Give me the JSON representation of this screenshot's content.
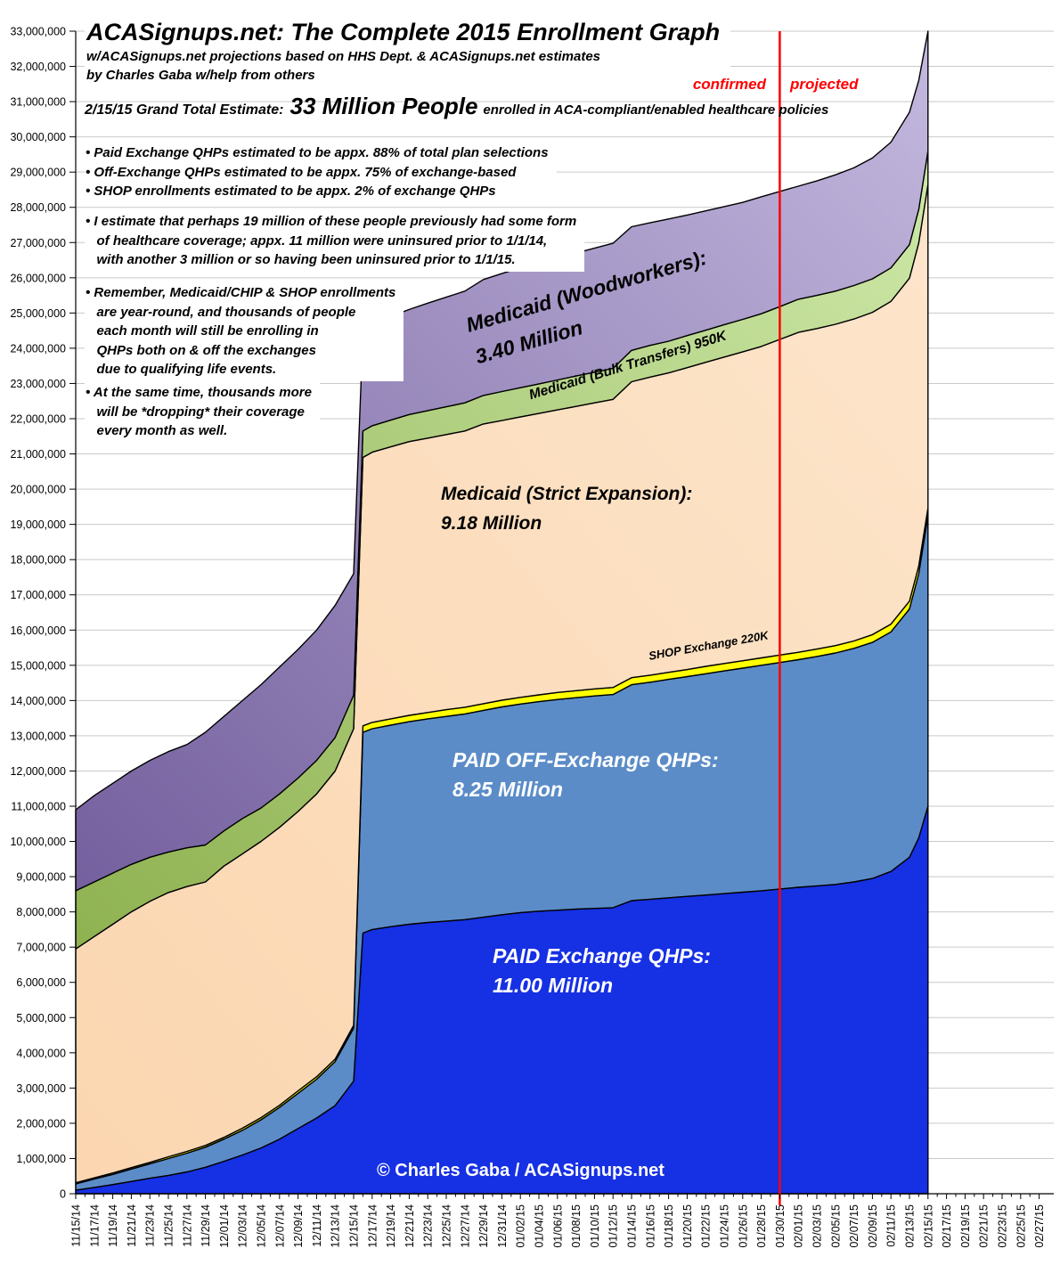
{
  "header": {
    "title": "ACASignups.net: The Complete 2015 Enrollment Graph",
    "subtitle1": "w/ACASignups.net projections based on HHS Dept. & ACASignups.net estimates",
    "subtitle2": "by Charles Gaba w/help from others",
    "confirmed_label": "confirmed",
    "projected_label": "projected",
    "grand_total_prefix": "2/15/15 Grand Total Estimate:",
    "grand_total_big": "33 Million People",
    "grand_total_suffix": "enrolled in ACA-compliant/enabled healthcare policies"
  },
  "notes": {
    "assumptions": "• Paid Exchange QHPs estimated to be appx. 88% of total plan selections\n• Off-Exchange QHPs estimated to be appx. 75% of exchange-based\n• SHOP enrollments estimated to be appx. 2% of exchange QHPs",
    "prior_coverage": "• I estimate that perhaps 19 million of these people previously had some form\n   of healthcare coverage; appx. 11 million were uninsured prior to 1/1/14,\n   with another 3 million or so having been uninsured prior to 1/1/15.",
    "remember": "• Remember, Medicaid/CHIP & SHOP enrollments\n   are year-round, and thousands of people\n   each month will still be enrolling in\n   QHPs both on & off the exchanges\n   due to qualifying life events.",
    "attrition": "• At the same time, thousands more\n   will be *dropping* their coverage\n   every month as well."
  },
  "watermark": "© Charles Gaba / ACASignups.net",
  "chart_data": {
    "type": "area",
    "stacked": true,
    "units": "millions of people",
    "grid": "horizontal-only",
    "y_axis": {
      "min": 0,
      "max": 33000000,
      "tick_step": 1000000,
      "format": "comma"
    },
    "x_tick_labels": [
      "11/15/14",
      "11/17/14",
      "11/19/14",
      "11/21/14",
      "11/23/14",
      "11/25/14",
      "11/27/14",
      "11/29/14",
      "12/01/14",
      "12/03/14",
      "12/05/14",
      "12/07/14",
      "12/09/14",
      "12/11/14",
      "12/13/14",
      "12/15/14",
      "12/17/14",
      "12/19/14",
      "12/21/14",
      "12/23/14",
      "12/25/14",
      "12/27/14",
      "12/29/14",
      "12/31/14",
      "01/02/15",
      "01/04/15",
      "01/06/15",
      "01/08/15",
      "01/10/15",
      "01/12/15",
      "01/14/15",
      "01/16/15",
      "01/18/15",
      "01/20/15",
      "01/22/15",
      "01/24/15",
      "01/26/15",
      "01/28/15",
      "01/30/15",
      "02/01/15",
      "02/03/15",
      "02/05/15",
      "02/07/15",
      "02/09/15",
      "02/11/15",
      "02/13/15",
      "02/15/15",
      "02/17/15",
      "02/19/15",
      "02/21/15",
      "02/23/15",
      "02/25/15",
      "02/27/15"
    ],
    "divider": {
      "label_left": "confirmed",
      "label_right": "projected",
      "date": "01/30/15",
      "tick_index": 38,
      "color": "#ff0000"
    },
    "x_data_dates": [
      "11/15/14",
      "11/17/14",
      "11/19/14",
      "11/21/14",
      "11/23/14",
      "11/25/14",
      "11/27/14",
      "11/29/14",
      "12/01/14",
      "12/03/14",
      "12/05/14",
      "12/07/14",
      "12/09/14",
      "12/11/14",
      "12/13/14",
      "12/15/14",
      "12/16/14",
      "12/17/14",
      "12/19/14",
      "12/21/14",
      "12/23/14",
      "12/25/14",
      "12/27/14",
      "12/29/14",
      "12/31/14",
      "01/02/15",
      "01/04/15",
      "01/06/15",
      "01/08/15",
      "01/10/15",
      "01/12/15",
      "01/14/15",
      "01/16/15",
      "01/18/15",
      "01/20/15",
      "01/22/15",
      "01/24/15",
      "01/26/15",
      "01/28/15",
      "01/30/15",
      "02/01/15",
      "02/03/15",
      "02/05/15",
      "02/07/15",
      "02/09/15",
      "02/11/15",
      "02/13/15",
      "02/14/15",
      "02/15/15"
    ],
    "x_data_tick_index": [
      0,
      1,
      2,
      3,
      4,
      5,
      6,
      7,
      8,
      9,
      10,
      11,
      12,
      13,
      14,
      15,
      15.5,
      16,
      17,
      18,
      19,
      20,
      21,
      22,
      23,
      24,
      25,
      26,
      27,
      28,
      29,
      30,
      31,
      32,
      33,
      34,
      35,
      36,
      37,
      38,
      39,
      40,
      41,
      42,
      43,
      44,
      45,
      45.5,
      46
    ],
    "series": [
      {
        "id": "paid_exchange_qhps",
        "name": "PAID Exchange QHPs",
        "label": "PAID Exchange QHPs:\n11.00 Million",
        "final_value": "11.00 Million",
        "color": "#1630e4",
        "values": [
          0.1,
          0.18,
          0.26,
          0.35,
          0.44,
          0.52,
          0.62,
          0.75,
          0.92,
          1.1,
          1.3,
          1.55,
          1.85,
          2.15,
          2.5,
          3.2,
          7.4,
          7.5,
          7.58,
          7.65,
          7.7,
          7.74,
          7.78,
          7.85,
          7.92,
          7.98,
          8.02,
          8.05,
          8.08,
          8.1,
          8.12,
          8.32,
          8.36,
          8.4,
          8.44,
          8.48,
          8.52,
          8.56,
          8.6,
          8.65,
          8.7,
          8.74,
          8.78,
          8.85,
          8.95,
          9.15,
          9.55,
          10.1,
          11.0
        ]
      },
      {
        "id": "paid_off_exchange_qhps",
        "name": "PAID OFF-Exchange QHPs",
        "label": "PAID OFF-Exchange QHPs:\n8.25 Million",
        "final_value": "8.25 Million",
        "color": "#5b8cc8",
        "values": [
          0.18,
          0.24,
          0.29,
          0.35,
          0.41,
          0.48,
          0.53,
          0.57,
          0.63,
          0.7,
          0.8,
          0.9,
          1.0,
          1.1,
          1.25,
          1.5,
          5.7,
          5.7,
          5.72,
          5.75,
          5.78,
          5.81,
          5.84,
          5.87,
          5.9,
          5.92,
          5.95,
          5.98,
          6.0,
          6.03,
          6.05,
          6.13,
          6.16,
          6.2,
          6.24,
          6.28,
          6.32,
          6.36,
          6.4,
          6.43,
          6.46,
          6.51,
          6.57,
          6.63,
          6.7,
          6.8,
          7.05,
          7.5,
          8.25
        ]
      },
      {
        "id": "shop_exchange",
        "name": "SHOP Exchange",
        "label": "SHOP Exchange 220K",
        "final_value": "220K",
        "color": "#ffff00",
        "values": [
          0.03,
          0.03,
          0.04,
          0.04,
          0.04,
          0.05,
          0.05,
          0.05,
          0.05,
          0.06,
          0.06,
          0.06,
          0.07,
          0.07,
          0.07,
          0.08,
          0.18,
          0.18,
          0.18,
          0.18,
          0.18,
          0.19,
          0.19,
          0.19,
          0.19,
          0.19,
          0.19,
          0.2,
          0.2,
          0.2,
          0.2,
          0.2,
          0.2,
          0.2,
          0.2,
          0.21,
          0.21,
          0.21,
          0.21,
          0.21,
          0.21,
          0.21,
          0.21,
          0.21,
          0.22,
          0.22,
          0.22,
          0.22,
          0.22
        ]
      },
      {
        "id": "medicaid_strict_expansion",
        "name": "Medicaid (Strict Expansion)",
        "label": "Medicaid (Strict Expansion):\n9.18 Million",
        "final_value": "9.18 Million",
        "color": "#fbd6b0",
        "color2": "#fde5cb",
        "values": [
          6.64,
          6.85,
          7.06,
          7.26,
          7.41,
          7.5,
          7.52,
          7.48,
          7.7,
          7.79,
          7.84,
          7.89,
          7.93,
          8.03,
          8.18,
          8.42,
          7.62,
          7.67,
          7.72,
          7.77,
          7.79,
          7.81,
          7.84,
          7.94,
          7.94,
          7.96,
          7.99,
          8.02,
          8.07,
          8.12,
          8.18,
          8.4,
          8.46,
          8.5,
          8.57,
          8.63,
          8.7,
          8.77,
          8.84,
          8.96,
          9.08,
          9.1,
          9.12,
          9.14,
          9.15,
          9.16,
          9.17,
          9.17,
          9.18
        ]
      },
      {
        "id": "medicaid_bulk_transfers",
        "name": "Medicaid (Bulk Transfers)",
        "label": "Medicaid (Bulk Transfers) 950K",
        "final_value": "950K",
        "color": "#8fb251",
        "color2": "#cde8a8",
        "values": [
          1.65,
          1.55,
          1.45,
          1.35,
          1.25,
          1.15,
          1.1,
          1.05,
          1.0,
          1.0,
          0.95,
          0.95,
          0.95,
          0.95,
          0.95,
          0.95,
          0.75,
          0.75,
          0.76,
          0.77,
          0.78,
          0.79,
          0.8,
          0.81,
          0.82,
          0.83,
          0.84,
          0.85,
          0.86,
          0.87,
          0.88,
          0.89,
          0.9,
          0.9,
          0.91,
          0.91,
          0.92,
          0.92,
          0.93,
          0.93,
          0.94,
          0.94,
          0.94,
          0.95,
          0.95,
          0.95,
          0.95,
          0.95,
          0.95
        ]
      },
      {
        "id": "medicaid_woodworkers",
        "name": "Medicaid (Woodworkers)",
        "label": "Medicaid (Woodworkers):\n3.40 Million",
        "final_value": "3.40 Million",
        "color": "#74609e",
        "color2": "#c3b8de",
        "values": [
          2.3,
          2.45,
          2.55,
          2.65,
          2.75,
          2.85,
          2.93,
          3.2,
          3.25,
          3.35,
          3.5,
          3.6,
          3.65,
          3.7,
          3.75,
          3.45,
          2.75,
          2.9,
          2.94,
          2.98,
          3.05,
          3.11,
          3.17,
          3.29,
          3.35,
          3.4,
          3.43,
          3.46,
          3.49,
          3.52,
          3.55,
          3.51,
          3.48,
          3.47,
          3.42,
          3.39,
          3.35,
          3.32,
          3.32,
          3.27,
          3.21,
          3.25,
          3.3,
          3.34,
          3.43,
          3.57,
          3.76,
          3.66,
          3.4
        ]
      }
    ]
  }
}
